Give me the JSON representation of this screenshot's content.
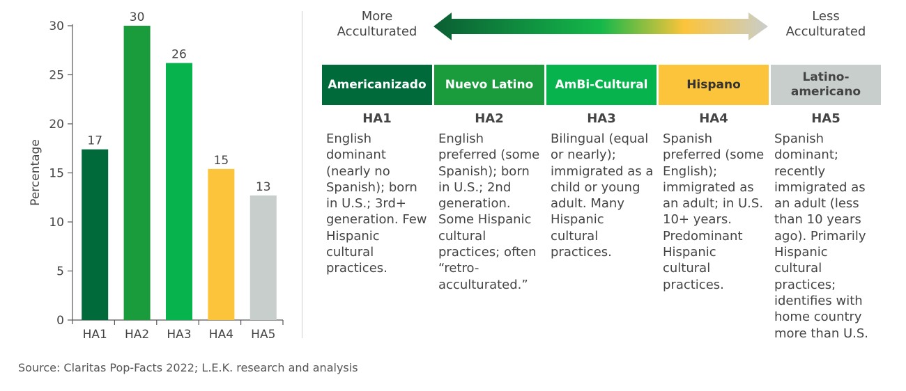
{
  "chart_data": {
    "type": "bar",
    "categories": [
      "HA1",
      "HA2",
      "HA3",
      "HA4",
      "HA5"
    ],
    "values": [
      17,
      30,
      26,
      15,
      13
    ],
    "value_labels": [
      "17",
      "30",
      "26",
      "15",
      "13"
    ],
    "bar_heights": [
      17.4,
      30,
      26.2,
      15.4,
      12.7
    ],
    "colors": [
      "#006a3b",
      "#1a9b3c",
      "#07b34d",
      "#fcc43a",
      "#c8cecc"
    ],
    "ylabel": "Percentage",
    "xlabel": "",
    "ylim": [
      0,
      30
    ],
    "yticks": [
      "0",
      "5",
      "10",
      "15",
      "20",
      "25",
      "30"
    ],
    "grid": false
  },
  "scale": {
    "left_label_line1": "More",
    "left_label_line2": "Acculturated",
    "right_label_line1": "Less",
    "right_label_line2": "Acculturated"
  },
  "segments": [
    {
      "name": "Americanizado",
      "code": "HA1",
      "bg": "#006a3b",
      "fg": "#ffffff",
      "description": "English dominant (nearly no Spanish); born in U.S.; 3rd+ generation. Few Hispanic cultural practices."
    },
    {
      "name": "Nuevo Latino",
      "code": "HA2",
      "bg": "#1a9b3c",
      "fg": "#ffffff",
      "description": "English preferred (some Spanish); born in U.S.; 2nd generation. Some Hispanic cultural practices; often “retro-acculturated.”"
    },
    {
      "name": "AmBi-Cultural",
      "code": "HA3",
      "bg": "#07b34d",
      "fg": "#ffffff",
      "description": "Bilingual (equal or nearly); immigrated as a child or young adult. Many Hispanic cultural practices."
    },
    {
      "name": "Hispano",
      "code": "HA4",
      "bg": "#fcc43a",
      "fg": "#333333",
      "description": "Spanish preferred (some English); immigrated as an adult; in U.S. 10+ years. Predominant Hispanic cultural practices."
    },
    {
      "name": "Latino-americano",
      "code": "HA5",
      "bg": "#c8cecc",
      "fg": "#444444",
      "description": "Spanish dominant; recently immigrated as an adult (less than 10 years ago). Primarily Hispanic cultural practices; identifies with home country more than U.S."
    }
  ],
  "source": "Source: Claritas Pop-Facts 2022; L.E.K. research and analysis"
}
